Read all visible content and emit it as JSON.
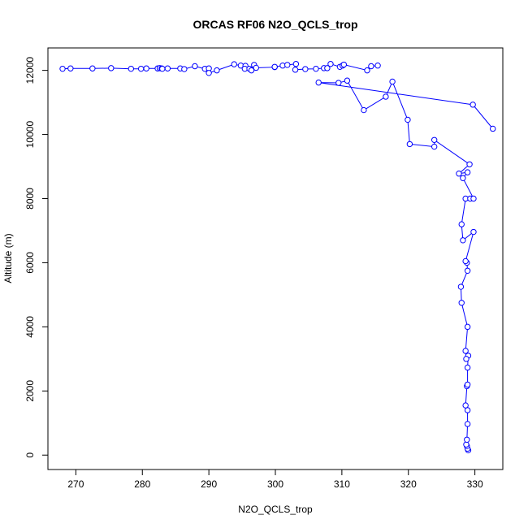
{
  "chart_data": {
    "type": "line",
    "title": "ORCAS RF06 N2O_QCLS_trop",
    "xlabel": "N2O_QCLS_trop",
    "ylabel": "Altitude (m)",
    "xlim": [
      265.8,
      334.2
    ],
    "ylim": [
      -450,
      12700
    ],
    "x_ticks": [
      270,
      280,
      290,
      300,
      310,
      320,
      330
    ],
    "y_ticks": [
      0,
      2000,
      4000,
      6000,
      8000,
      10000,
      12000
    ],
    "marker": "open-circle",
    "line_color": "#0000ff",
    "grid": false,
    "legend": "none",
    "series": [
      {
        "points": [
          [
            329.0,
            150
          ],
          [
            328.9,
            200
          ],
          [
            328.8,
            280
          ],
          [
            328.7,
            330
          ],
          [
            328.8,
            480
          ],
          [
            328.9,
            970
          ],
          [
            328.9,
            1400
          ],
          [
            328.6,
            1550
          ],
          [
            328.8,
            2150
          ],
          [
            328.9,
            2200
          ],
          [
            328.9,
            2730
          ],
          [
            329.0,
            3100
          ],
          [
            328.7,
            3000
          ],
          [
            328.6,
            3250
          ],
          [
            328.9,
            4000
          ],
          [
            328.0,
            4750
          ],
          [
            327.9,
            5250
          ],
          [
            328.9,
            5750
          ],
          [
            328.8,
            6000
          ],
          [
            328.6,
            6050
          ],
          [
            329.8,
            6960
          ],
          [
            328.2,
            6700
          ],
          [
            328.0,
            7200
          ],
          [
            328.6,
            8000
          ],
          [
            329.3,
            8000
          ],
          [
            329.8,
            8000
          ],
          [
            328.2,
            8640
          ],
          [
            328.9,
            8820
          ],
          [
            327.6,
            8780
          ],
          [
            329.2,
            9070
          ],
          [
            323.9,
            9830
          ],
          [
            323.9,
            9620
          ],
          [
            320.2,
            9700
          ],
          [
            319.9,
            10460
          ],
          [
            317.6,
            11650
          ],
          [
            316.6,
            11180
          ],
          [
            313.3,
            10760
          ],
          [
            310.8,
            11680
          ],
          [
            309.5,
            11610
          ],
          [
            306.5,
            11620
          ],
          [
            329.7,
            10930
          ],
          [
            332.7,
            10180
          ]
        ]
      },
      {
        "points": [
          [
            268.0,
            12050
          ],
          [
            269.2,
            12060
          ],
          [
            272.5,
            12060
          ],
          [
            275.3,
            12070
          ],
          [
            278.3,
            12050
          ],
          [
            279.8,
            12050
          ],
          [
            280.6,
            12060
          ],
          [
            282.3,
            12060
          ],
          [
            282.6,
            12070
          ],
          [
            282.9,
            12060
          ],
          [
            283.0,
            12050
          ],
          [
            283.8,
            12060
          ],
          [
            285.7,
            12060
          ],
          [
            286.3,
            12040
          ],
          [
            287.9,
            12130
          ],
          [
            289.4,
            12050
          ],
          [
            290.0,
            12060
          ],
          [
            290.0,
            11920
          ],
          [
            291.2,
            12000
          ],
          [
            293.8,
            12190
          ],
          [
            294.8,
            12150
          ],
          [
            295.5,
            12140
          ],
          [
            295.4,
            12050
          ],
          [
            296.1,
            12050
          ],
          [
            296.8,
            12170
          ],
          [
            296.4,
            12000
          ],
          [
            297.1,
            12080
          ],
          [
            299.9,
            12100
          ],
          [
            299.9,
            12110
          ],
          [
            301.1,
            12150
          ],
          [
            301.8,
            12170
          ],
          [
            303.1,
            12200
          ],
          [
            303.0,
            12020
          ],
          [
            304.5,
            12040
          ],
          [
            306.1,
            12050
          ],
          [
            307.3,
            12070
          ],
          [
            307.8,
            12070
          ],
          [
            308.3,
            12200
          ],
          [
            309.7,
            12110
          ],
          [
            310.1,
            12150
          ],
          [
            310.3,
            12180
          ],
          [
            313.8,
            12000
          ],
          [
            314.4,
            12130
          ],
          [
            315.4,
            12150
          ]
        ]
      }
    ]
  }
}
